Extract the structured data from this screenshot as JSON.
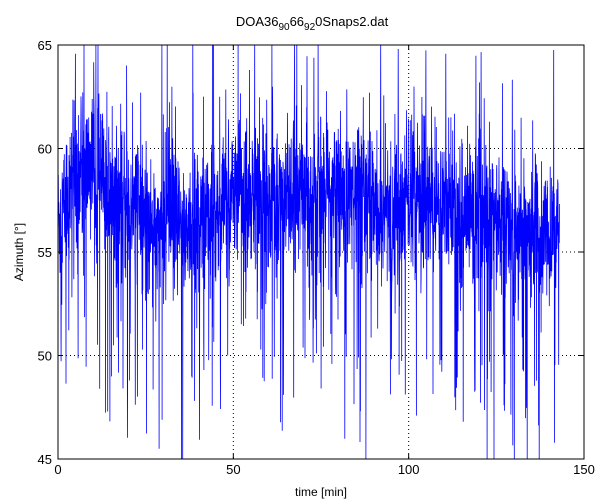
{
  "chart_data": {
    "type": "line",
    "title": {
      "base": "DOA36",
      "sub1": "90",
      "mid": "66",
      "sub2": "92",
      "tail": "0Snaps2.dat"
    },
    "xlabel": "time [min]",
    "ylabel": "Azimuth [°]",
    "xlim": [
      0,
      150
    ],
    "ylim": [
      45,
      65
    ],
    "xticks": [
      0,
      50,
      100,
      150
    ],
    "yticks": [
      45,
      50,
      55,
      60,
      65
    ],
    "grid": true,
    "series": [
      {
        "color": "#0000ff",
        "x": [
          0,
          5,
          10,
          15,
          20,
          25,
          30,
          35,
          40,
          45,
          50,
          55,
          60,
          65,
          70,
          75,
          80,
          85,
          90,
          95,
          100,
          105,
          110,
          115,
          120,
          125,
          130,
          135,
          140,
          143
        ],
        "y": [
          56.5,
          58.5,
          59.5,
          57.5,
          57.0,
          56.8,
          56.5,
          56.0,
          56.5,
          57.0,
          57.5,
          57.8,
          57.5,
          57.6,
          57.8,
          58.0,
          57.8,
          57.5,
          56.5,
          56.5,
          57.5,
          57.5,
          57.2,
          57.0,
          56.8,
          56.5,
          56.0,
          55.8,
          55.5,
          55.5
        ]
      }
    ]
  }
}
